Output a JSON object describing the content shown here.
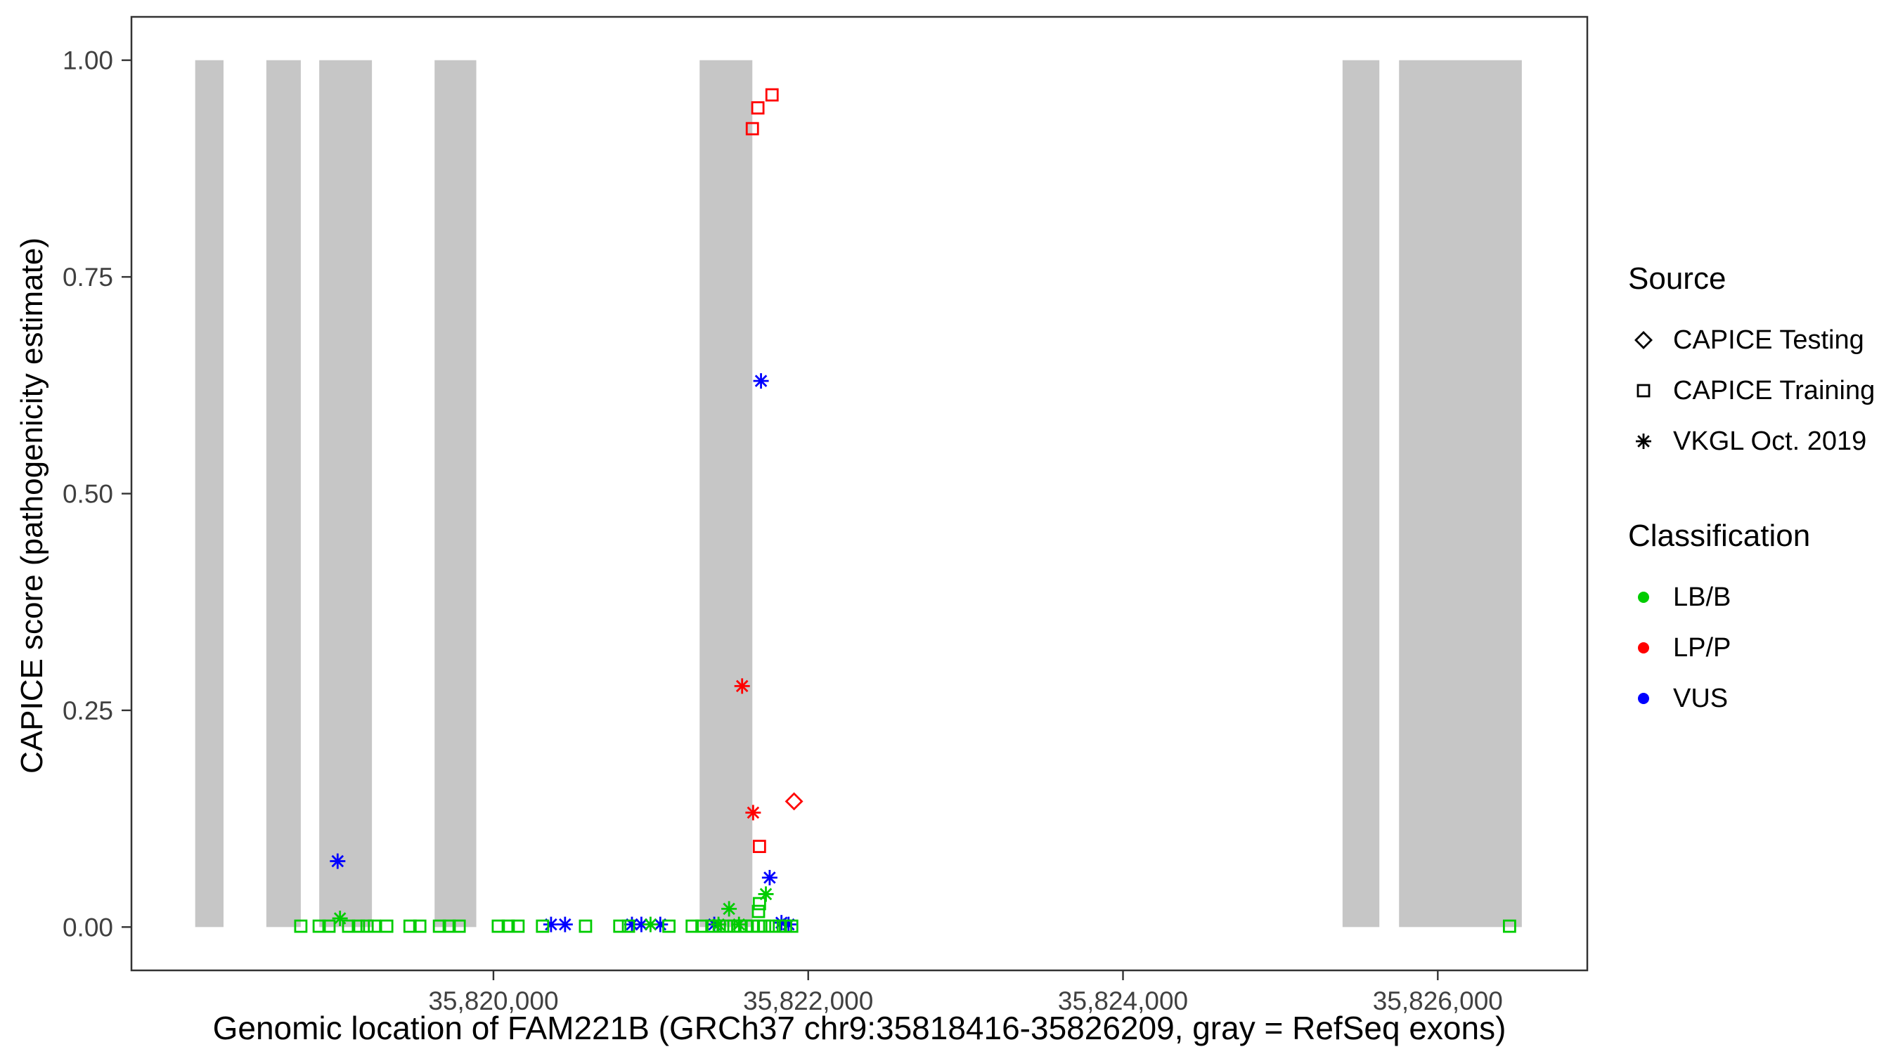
{
  "legend": {
    "source": {
      "title": "Source",
      "items": [
        {
          "label": "CAPICE Testing",
          "marker": "diamond",
          "color": "#000000"
        },
        {
          "label": "CAPICE Training",
          "marker": "square",
          "color": "#000000"
        },
        {
          "label": "VKGL Oct. 2019",
          "marker": "asterisk",
          "color": "#000000"
        }
      ]
    },
    "classification": {
      "title": "Classification",
      "items": [
        {
          "label": "LB/B",
          "marker": "dot",
          "color": "#00cc00"
        },
        {
          "label": "LP/P",
          "marker": "dot",
          "color": "#ff0000"
        },
        {
          "label": "VUS",
          "marker": "dot",
          "color": "#0000ff"
        }
      ]
    }
  },
  "chart_data": {
    "type": "scatter",
    "title": "",
    "xlabel": "Genomic location of FAM221B (GRCh37 chr9:35818416-35826209, gray = RefSeq exons)",
    "ylabel": "CAPICE score (pathogenicity estimate)",
    "xlim": [
      35817700,
      35826950
    ],
    "ylim": [
      -0.05,
      1.05
    ],
    "x_ticks": [
      35820000,
      35822000,
      35824000,
      35826000
    ],
    "x_tick_labels": [
      "35,820,000",
      "35,822,000",
      "35,824,000",
      "35,826,000"
    ],
    "y_ticks": [
      0.0,
      0.25,
      0.5,
      0.75,
      1.0
    ],
    "y_tick_labels": [
      "0.00",
      "0.25",
      "0.50",
      "0.75",
      "1.00"
    ],
    "grid": false,
    "legend_position": "right",
    "exon_color": "#c6c6c6",
    "exons": [
      [
        35818105,
        35818285
      ],
      [
        35818557,
        35818776
      ],
      [
        35818893,
        35819228
      ],
      [
        35819626,
        35819891
      ],
      [
        35821310,
        35821645
      ],
      [
        35825395,
        35825629
      ],
      [
        35825754,
        35826534
      ]
    ],
    "series": [
      {
        "name": "CAPICE Testing / LP/P",
        "source": "CAPICE Testing",
        "classification": "LP/P",
        "marker": "diamond",
        "color": "#ff0000",
        "points": [
          [
            35821910,
            0.145
          ]
        ]
      },
      {
        "name": "CAPICE Training / LP/P",
        "source": "CAPICE Training",
        "classification": "LP/P",
        "marker": "square",
        "color": "#ff0000",
        "points": [
          [
            35821645,
            0.921
          ],
          [
            35821680,
            0.945
          ],
          [
            35821770,
            0.96
          ],
          [
            35821690,
            0.093
          ]
        ]
      },
      {
        "name": "VKGL Oct. 2019 / LP/P",
        "source": "VKGL Oct. 2019",
        "classification": "LP/P",
        "marker": "asterisk",
        "color": "#ff0000",
        "points": [
          [
            35821580,
            0.278
          ],
          [
            35821650,
            0.132
          ]
        ]
      },
      {
        "name": "VKGL Oct. 2019 / VUS",
        "source": "VKGL Oct. 2019",
        "classification": "VUS",
        "marker": "asterisk",
        "color": "#0000ff",
        "points": [
          [
            35821700,
            0.63
          ],
          [
            35819010,
            0.076
          ],
          [
            35821755,
            0.057
          ],
          [
            35820366,
            0.003
          ],
          [
            35820455,
            0.003
          ],
          [
            35820880,
            0.003
          ],
          [
            35820940,
            0.003
          ],
          [
            35821060,
            0.003
          ],
          [
            35821403,
            0.003
          ],
          [
            35821830,
            0.005
          ],
          [
            35821875,
            0.003
          ]
        ]
      },
      {
        "name": "VKGL Oct. 2019 / LB/B",
        "source": "VKGL Oct. 2019",
        "classification": "LB/B",
        "marker": "asterisk",
        "color": "#00cc00",
        "points": [
          [
            35819025,
            0.01
          ],
          [
            35821497,
            0.021
          ],
          [
            35821731,
            0.038
          ],
          [
            35820998,
            0.003
          ],
          [
            35821430,
            0.003
          ],
          [
            35821560,
            0.003
          ]
        ]
      },
      {
        "name": "CAPICE Training / LB/B",
        "source": "CAPICE Training",
        "classification": "LB/B",
        "marker": "square",
        "color": "#00cc00",
        "points": [
          [
            35818776,
            0.001
          ],
          [
            35818893,
            0.001
          ],
          [
            35818955,
            0.001
          ],
          [
            35819080,
            0.001
          ],
          [
            35819142,
            0.001
          ],
          [
            35819197,
            0.001
          ],
          [
            35819244,
            0.001
          ],
          [
            35819322,
            0.001
          ],
          [
            35819470,
            0.001
          ],
          [
            35819532,
            0.001
          ],
          [
            35819657,
            0.001
          ],
          [
            35819719,
            0.001
          ],
          [
            35819782,
            0.001
          ],
          [
            35820031,
            0.001
          ],
          [
            35820094,
            0.001
          ],
          [
            35820156,
            0.001
          ],
          [
            35820312,
            0.001
          ],
          [
            35820585,
            0.001
          ],
          [
            35820803,
            0.001
          ],
          [
            35820858,
            0.001
          ],
          [
            35821115,
            0.001
          ],
          [
            35821263,
            0.001
          ],
          [
            35821325,
            0.001
          ],
          [
            35821388,
            0.001
          ],
          [
            35821435,
            0.001
          ],
          [
            35821481,
            0.001
          ],
          [
            35821528,
            0.001
          ],
          [
            35821567,
            0.001
          ],
          [
            35821606,
            0.001
          ],
          [
            35821645,
            0.001
          ],
          [
            35821684,
            0.001
          ],
          [
            35821723,
            0.001
          ],
          [
            35821770,
            0.001
          ],
          [
            35821817,
            0.001
          ],
          [
            35821856,
            0.001
          ],
          [
            35821895,
            0.001
          ],
          [
            35826456,
            0.001
          ],
          [
            35821690,
            0.027
          ],
          [
            35821684,
            0.018
          ]
        ]
      }
    ]
  }
}
